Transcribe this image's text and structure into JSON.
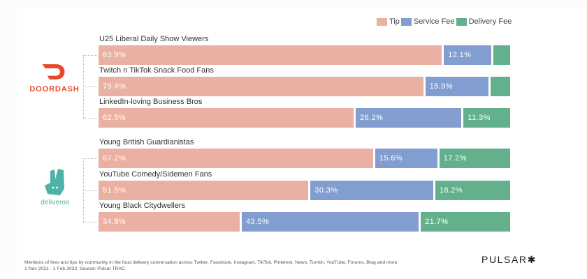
{
  "legend": {
    "position": "top-right",
    "entries": [
      {
        "label": "Tip",
        "color": "#EAB0A2"
      },
      {
        "label": "Service Fee",
        "color": "#829DCF"
      },
      {
        "label": "Delivery Fee",
        "color": "#63B08C"
      }
    ]
  },
  "brands": {
    "doordash": {
      "name": "DOORDASH",
      "color": "#E8472D",
      "icon": "doordash-logo-icon"
    },
    "deliveroo": {
      "name": "deliveroo",
      "color": "#4DB3A8",
      "icon": "deliveroo-kangaroo-icon"
    }
  },
  "chart_data": {
    "type": "bar",
    "orientation": "horizontal",
    "stacked": true,
    "normalized": true,
    "title": "",
    "xlabel": "",
    "ylabel": "",
    "xlim": [
      0,
      100
    ],
    "grid": false,
    "categories": [
      "U25 Liberal Daily Show Viewers",
      "Twitch n TikTok Snack Food Fans",
      "LinkedIn-loving Business Bros",
      "Young British Guardianistas",
      "YouTube Comedy/Sidemen Fans",
      "Young Black Citydwellers"
    ],
    "groups": [
      {
        "brand": "doordash",
        "category_indices": [
          0,
          1,
          2
        ]
      },
      {
        "brand": "deliveroo",
        "category_indices": [
          3,
          4,
          5
        ]
      }
    ],
    "series": [
      {
        "name": "Tip",
        "color": "#EAB0A2",
        "values": [
          83.9,
          79.4,
          62.5,
          67.2,
          51.5,
          34.8
        ]
      },
      {
        "name": "Service Fee",
        "color": "#829DCF",
        "values": [
          12.1,
          15.9,
          26.2,
          15.6,
          30.3,
          43.5
        ]
      },
      {
        "name": "Delivery Fee",
        "color": "#63B08C",
        "values": [
          4.0,
          4.7,
          11.3,
          17.2,
          18.2,
          21.7
        ]
      }
    ],
    "value_labels": [
      [
        "83.9%",
        "12.1%",
        null
      ],
      [
        "79.4%",
        "15.9%",
        null
      ],
      [
        "62.5%",
        "26.2%",
        "11.3%"
      ],
      [
        "67.2%",
        "15.6%",
        "17.2%"
      ],
      [
        "51.5%",
        "30.3%",
        "18.2%"
      ],
      [
        "34.8%",
        "43.5%",
        "21.7%"
      ]
    ],
    "legend": [
      "Tip",
      "Service Fee",
      "Delivery Fee"
    ]
  },
  "footer": {
    "note_line1": "Mentions of fees and tips by community in the food delivery conversation across Twitter, Facebook, Instagram, TikTok, Pinterest, News, Tumblr, YouTube, Forums, Blog and more.",
    "note_line2": "1 Nov 2021 - 1 Feb 2022. Source: Pulsar  TRAC"
  },
  "branding": {
    "logo_text": "PULSAR✱"
  }
}
